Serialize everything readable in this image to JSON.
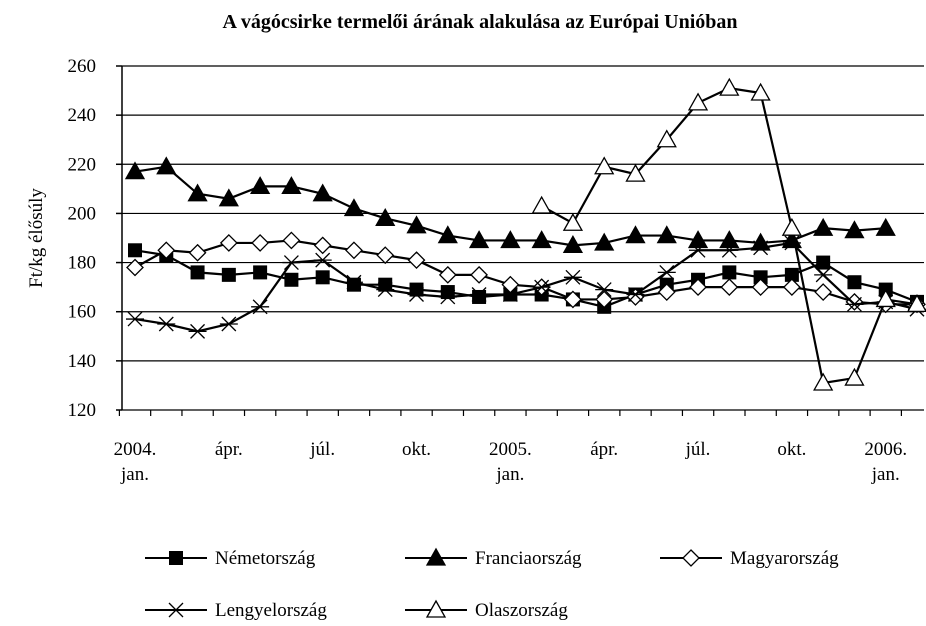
{
  "chart_data": {
    "type": "line",
    "title": "A vágócsirke termelői árának alakulása az Európai Unióban",
    "ylabel": "Ft/kg élősúly",
    "categories": [
      "2004.\njan.",
      null,
      null,
      "ápr.",
      null,
      null,
      "júl.",
      null,
      null,
      "okt.",
      null,
      null,
      "2005.\njan.",
      null,
      null,
      "ápr.",
      null,
      null,
      "júl.",
      null,
      null,
      "okt.",
      null,
      null,
      "2006.\njan.",
      null
    ],
    "ylim": [
      120,
      260
    ],
    "yticks": [
      120,
      140,
      160,
      180,
      200,
      220,
      240,
      260
    ],
    "grid": true,
    "series": [
      {
        "name": "Németország",
        "color": "#000000",
        "marker": "square",
        "values": [
          185,
          183,
          176,
          175,
          176,
          173,
          174,
          171,
          171,
          169,
          168,
          166,
          167,
          167,
          165,
          162,
          167,
          171,
          173,
          176,
          174,
          175,
          180,
          172,
          169,
          164
        ]
      },
      {
        "name": "Franciaország",
        "color": "#000000",
        "marker": "triangle",
        "values": [
          217,
          219,
          208,
          206,
          211,
          211,
          208,
          202,
          198,
          195,
          191,
          189,
          189,
          189,
          187,
          188,
          191,
          191,
          189,
          189,
          188,
          189,
          194,
          193,
          194,
          null
        ]
      },
      {
        "name": "Magyarország",
        "color": "#000000",
        "marker": "diamond-open",
        "values": [
          178,
          185,
          184,
          188,
          188,
          189,
          187,
          185,
          183,
          181,
          175,
          175,
          171,
          170,
          165,
          165,
          166,
          168,
          170,
          170,
          170,
          170,
          168,
          164,
          163,
          163
        ]
      },
      {
        "name": "Lengyelország",
        "color": "#000000",
        "marker": "star",
        "values": [
          157,
          155,
          152,
          155,
          162,
          180,
          181,
          172,
          169,
          167,
          166,
          167,
          167,
          170,
          174,
          169,
          167,
          176,
          185,
          185,
          186,
          188,
          175,
          163,
          164,
          161
        ]
      },
      {
        "name": "Olaszország",
        "color": "#000000",
        "marker": "triangle-open",
        "values": [
          null,
          null,
          null,
          null,
          null,
          null,
          null,
          null,
          null,
          null,
          null,
          null,
          null,
          203,
          196,
          219,
          216,
          230,
          245,
          251,
          249,
          194,
          131,
          133,
          165,
          163
        ]
      }
    ]
  }
}
